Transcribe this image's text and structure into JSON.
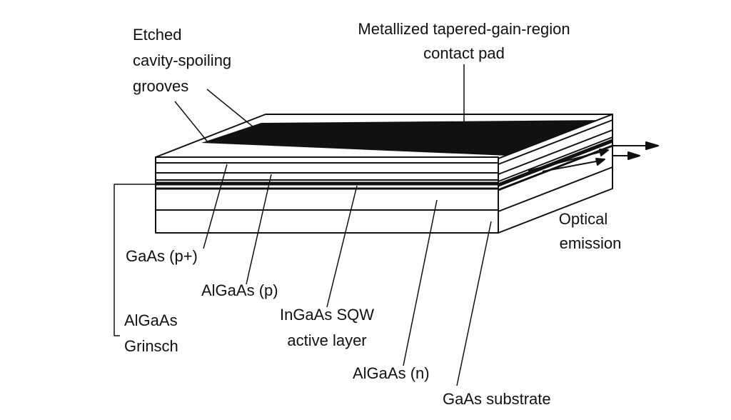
{
  "labels": {
    "etched_line1": "Etched",
    "etched_line2": "cavity-spoiling",
    "etched_line3": "grooves",
    "contact_line1": "Metallized tapered-gain-region",
    "contact_line2": "contact pad",
    "optical_line1": "Optical",
    "optical_line2": "emission",
    "gaas_p": "GaAs (p+)",
    "algaas_p": "AlGaAs (p)",
    "ingaas_line1": "InGaAs SQW",
    "ingaas_line2": "active layer",
    "algaas_grinsch_line1": "AlGaAs",
    "algaas_grinsch_line2": "Grinsch",
    "algaas_n": "AlGaAs (n)",
    "gaas_substrate": "GaAs substrate"
  },
  "colors": {
    "ink": "#111111",
    "background": "#ffffff"
  }
}
